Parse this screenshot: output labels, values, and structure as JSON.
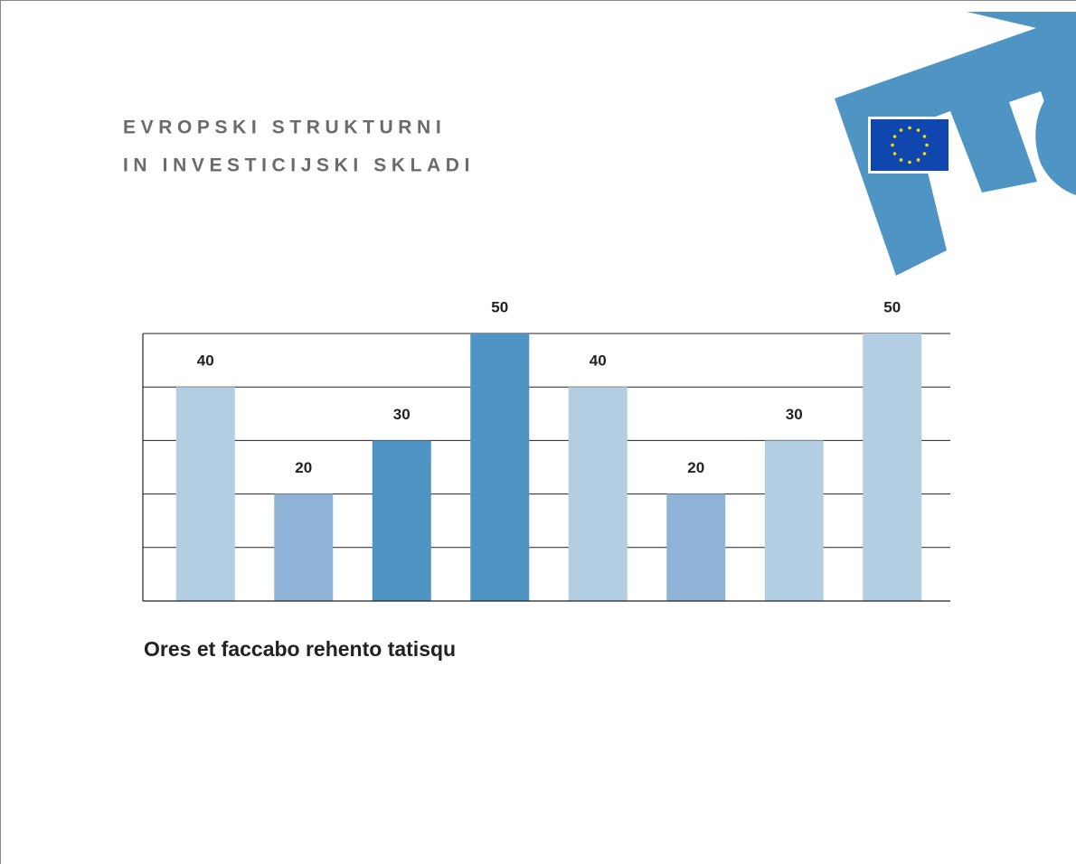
{
  "header": {
    "lines": [
      "EVROPSKI STRUKTURNI",
      "IN INVESTICIJSKI SKLADI"
    ]
  },
  "chart_data": {
    "type": "bar",
    "title": "Ores et faccabo rehento tatisqu",
    "categories": [
      null,
      null,
      null,
      null,
      null,
      null,
      null,
      null
    ],
    "values": [
      40,
      20,
      30,
      50,
      40,
      20,
      30,
      50
    ],
    "colors": [
      "#b3cde3",
      "#8fb3d7",
      "#4f95c4",
      "#4f95c4",
      "#b3cde3",
      "#8fb3d7",
      "#b3cde3",
      "#b3cde3"
    ],
    "ylim": [
      0,
      50
    ],
    "yticks": [
      0,
      10,
      20,
      30,
      40,
      50
    ],
    "grid": true,
    "tick_labels": false,
    "data_labels": true
  }
}
